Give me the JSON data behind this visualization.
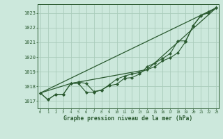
{
  "xlabel": "Graphe pression niveau de la mer (hPa)",
  "background_color": "#cce8dc",
  "grid_color": "#aaccbb",
  "line_color": "#2a5a30",
  "text_color": "#2a5a30",
  "x_ticks": [
    0,
    1,
    2,
    3,
    4,
    5,
    6,
    7,
    8,
    9,
    10,
    11,
    12,
    13,
    14,
    15,
    16,
    17,
    18,
    19,
    20,
    21,
    22,
    23
  ],
  "y_ticks": [
    1017,
    1018,
    1019,
    1020,
    1021,
    1022,
    1023
  ],
  "ylim": [
    1016.5,
    1023.6
  ],
  "xlim": [
    -0.3,
    23.3
  ],
  "series1": [
    1017.55,
    1017.1,
    1017.45,
    1017.45,
    1018.2,
    1018.2,
    1017.6,
    1017.6,
    1017.75,
    1018.1,
    1018.5,
    1018.7,
    1018.85,
    1018.95,
    1019.15,
    1019.35,
    1019.75,
    1019.95,
    1020.3,
    1021.05,
    1022.15,
    1022.8,
    1023.1,
    1023.35
  ],
  "series2": [
    1017.55,
    1017.1,
    1017.45,
    1017.45,
    1018.2,
    1018.3,
    1018.2,
    1017.65,
    1017.75,
    1018.05,
    1018.15,
    1018.55,
    1018.6,
    1018.85,
    1019.35,
    1019.6,
    1019.9,
    1020.25,
    1021.1,
    1021.1,
    1022.15,
    1022.85,
    1023.0,
    1023.35
  ],
  "line1_x": [
    0,
    23
  ],
  "line1_y": [
    1017.55,
    1023.35
  ],
  "line2_x": [
    0,
    4,
    14,
    23
  ],
  "line2_y": [
    1017.55,
    1018.2,
    1019.15,
    1023.35
  ]
}
